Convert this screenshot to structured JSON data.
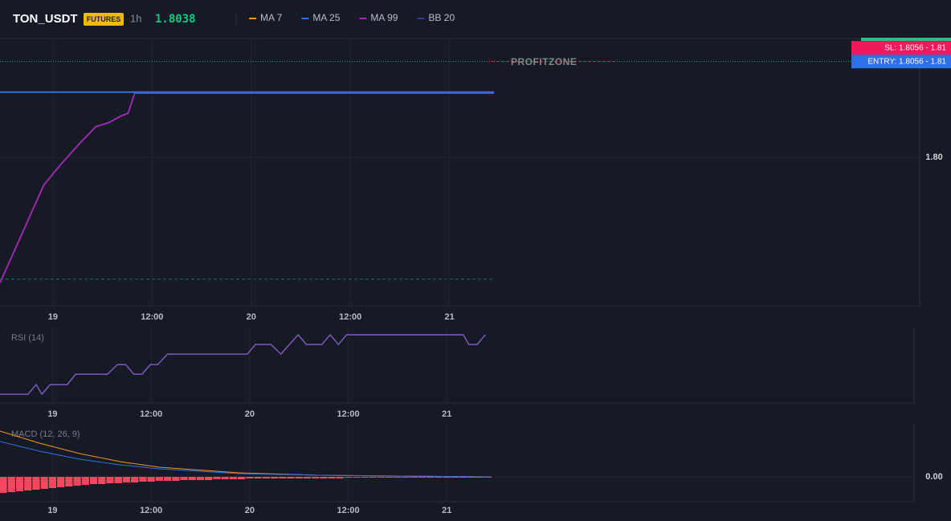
{
  "header": {
    "symbol": "TON_USDT",
    "badge": "FUTURES",
    "interval": "1h",
    "price": "1.8038",
    "legend": [
      {
        "name": "MA 7",
        "color": "#f7931a"
      },
      {
        "name": "MA 25",
        "color": "#2f6fe8"
      },
      {
        "name": "MA 99",
        "color": "#9c27b0"
      },
      {
        "name": "BB 20",
        "color": "#2a3f8f"
      }
    ]
  },
  "chart_data": [
    {
      "type": "line",
      "xlim": [
        -6.4,
        104.9
      ],
      "ylim": [
        1.7845,
        1.8124
      ],
      "xticks": [
        {
          "value": 0,
          "label": "19"
        },
        {
          "value": 12,
          "label": "12:00"
        },
        {
          "value": 24,
          "label": "20"
        },
        {
          "value": 36,
          "label": "12:00"
        },
        {
          "value": 48,
          "label": "21"
        }
      ],
      "yticks": [
        {
          "value": 1.8,
          "label": "1.80"
        }
      ],
      "grid": true,
      "series": [
        {
          "name": "MA 99",
          "color": "#9c27b0",
          "x": [
            -6.4,
            -5.2,
            -1.1,
            0.9,
            3.3,
            5.2,
            6.7,
            8.2,
            9.1,
            9.9,
            53.4
          ],
          "values": [
            1.7869,
            1.7892,
            1.7971,
            1.7992,
            1.8015,
            1.8032,
            1.8036,
            1.8043,
            1.8046,
            1.8067,
            1.8067
          ]
        },
        {
          "name": "MA 25",
          "color": "#2f6fe8",
          "x": [
            -6.4,
            53.4
          ],
          "values": [
            1.8068,
            1.8068
          ]
        },
        {
          "name": "BB 20",
          "color": "#1e6b5a",
          "x": [
            -6.4,
            53.4
          ],
          "values": [
            1.7873,
            1.7873
          ]
        }
      ],
      "levels": [
        {
          "label": "SL: 1.8056 - 1.81",
          "value": 1.81,
          "color": "#f0195a"
        },
        {
          "label": "ENTRY: 1.8056 - 1.81",
          "value": 1.81,
          "color": "#2f6fe8"
        }
      ],
      "annotation": {
        "text": "PROFITZONE",
        "value": 1.81
      }
    },
    {
      "type": "line",
      "title": "RSI (14)",
      "xlim": [
        -6.4,
        104.9
      ],
      "ylim": [
        30,
        80
      ],
      "xticks": [
        {
          "value": 0,
          "label": "19"
        },
        {
          "value": 12,
          "label": "12:00"
        },
        {
          "value": 24,
          "label": "20"
        },
        {
          "value": 36,
          "label": "12:00"
        },
        {
          "value": 48,
          "label": "21"
        }
      ],
      "grid": true,
      "series": [
        {
          "name": "RSI",
          "color": "#7e57c2",
          "x": [
            -6.4,
            -3.0,
            -2.0,
            -1.3,
            -0.3,
            1.8,
            2.8,
            6.7,
            7.9,
            8.9,
            9.9,
            10.9,
            11.9,
            12.8,
            14.0,
            23.7,
            24.7,
            26.6,
            27.8,
            29.9,
            30.9,
            32.8,
            33.8,
            34.8,
            35.8,
            50.0,
            50.7,
            51.7,
            52.7
          ],
          "values": [
            35.8,
            35.8,
            42.2,
            35.8,
            42.2,
            42.2,
            49.1,
            49.1,
            55.5,
            55.5,
            49.1,
            49.1,
            55.5,
            55.5,
            62.4,
            62.4,
            68.8,
            68.8,
            62.4,
            75.2,
            68.8,
            68.8,
            75.2,
            68.8,
            75.2,
            75.2,
            68.8,
            68.8,
            75.2
          ]
        }
      ]
    },
    {
      "type": "macd",
      "title": "MACD (12, 26, 9)",
      "xlim": [
        -6.4,
        104.9
      ],
      "ylim": [
        -0.0031,
        0.0066
      ],
      "xticks": [
        {
          "value": 0,
          "label": "19"
        },
        {
          "value": 12,
          "label": "12:00"
        },
        {
          "value": 24,
          "label": "20"
        },
        {
          "value": 36,
          "label": "12:00"
        },
        {
          "value": 48,
          "label": "21"
        }
      ],
      "yticks": [
        {
          "value": 0,
          "label": "0.00"
        }
      ],
      "grid": true,
      "series": [
        {
          "name": "MACD",
          "color": "#f7931a",
          "x": [
            -6.4,
            -1.6,
            3.3,
            8.2,
            13.0,
            22.7,
            32.5,
            42.2,
            53.4
          ],
          "values": [
            0.0057,
            0.0042,
            0.0029,
            0.0019,
            0.0012,
            0.0005,
            0.0002,
            0.0001,
            0
          ]
        },
        {
          "name": "Signal",
          "color": "#2f6fe8",
          "x": [
            -6.4,
            -1.6,
            3.3,
            8.2,
            13.0,
            22.7,
            32.5,
            42.2,
            53.4
          ],
          "values": [
            0.0044,
            0.0032,
            0.0022,
            0.0015,
            0.001,
            0.0004,
            0.0002,
            0.0001,
            0
          ]
        }
      ],
      "histogram": {
        "color": "#f6465d",
        "x": [
          -6,
          -5,
          -4,
          -3,
          -2,
          -1,
          0,
          1,
          2,
          3,
          4,
          5,
          6,
          7,
          8,
          9,
          10,
          11,
          12,
          13,
          14,
          15,
          16,
          17,
          18,
          19,
          20,
          21,
          22,
          23,
          24,
          25,
          26,
          27,
          28,
          29,
          30,
          31,
          32,
          33,
          34,
          35,
          36,
          37,
          38,
          39,
          40,
          41,
          42,
          43,
          44,
          45,
          46,
          47,
          48,
          49,
          50,
          51,
          52,
          53
        ],
        "values": [
          -0.002,
          -0.0019,
          -0.0018,
          -0.0017,
          -0.0016,
          -0.0015,
          -0.0014,
          -0.0013,
          -0.0012,
          -0.0011,
          -0.001,
          -0.0009,
          -0.0009,
          -0.0008,
          -0.0008,
          -0.0007,
          -0.0007,
          -0.0006,
          -0.0006,
          -0.0005,
          -0.0005,
          -0.0005,
          -0.0004,
          -0.0004,
          -0.0004,
          -0.0004,
          -0.0003,
          -0.0003,
          -0.0003,
          -0.0003,
          -0.0002,
          -0.0002,
          -0.0002,
          -0.0002,
          -0.0002,
          -0.0002,
          -0.0002,
          -0.0002,
          -0.0002,
          -0.0002,
          -0.0002,
          -0.0002,
          -0.0001,
          -0.0001,
          -0.0001,
          -0.0001,
          -0.0001,
          -0.0001,
          -0.0001,
          -0.0001,
          -0.0001,
          -0.0001,
          -0.0001,
          -0.0001,
          -0.0001,
          -0.0001,
          -0.0001,
          -0.0001,
          -0.0001,
          -0.0001
        ]
      }
    }
  ]
}
